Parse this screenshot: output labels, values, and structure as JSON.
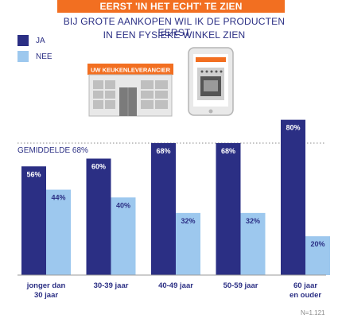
{
  "header": {
    "title": "EERST 'IN HET ECHT' TE ZIEN",
    "subtitle_line1": "BIJ GROTE AANKOPEN WIL IK DE PRODUCTEN EERST",
    "subtitle_line2": "IN EEN FYSIEKE WINKEL ZIEN"
  },
  "illustration": {
    "store_sign": "UW KEUKENLEVERANCIER",
    "store_icon": "storefront-icon",
    "tablet_icon": "tablet-oven-icon"
  },
  "footnote": "N=1.121",
  "colors": {
    "banner": "#f26f21",
    "ja": "#2b2f84",
    "nee": "#9dc8ee",
    "text": "#2b2f84"
  },
  "chart_data": {
    "type": "bar",
    "categories": [
      [
        "jonger dan",
        "30 jaar"
      ],
      [
        "30-39 jaar"
      ],
      [
        "40-49 jaar"
      ],
      [
        "50-59 jaar"
      ],
      [
        "60 jaar",
        "en ouder"
      ]
    ],
    "series": [
      {
        "name": "JA",
        "values": [
          56,
          60,
          68,
          68,
          80
        ]
      },
      {
        "name": "NEE",
        "values": [
          44,
          40,
          32,
          32,
          20
        ]
      }
    ],
    "data_labels": [
      [
        "56%",
        "60%",
        "68%",
        "68%",
        "80%"
      ],
      [
        "44%",
        "40%",
        "32%",
        "32%",
        "20%"
      ]
    ],
    "reference_line": {
      "value": 68,
      "label": "GEMIDDELDE 68%"
    },
    "legend_position": "top-left",
    "ylim": [
      0,
      86
    ]
  }
}
